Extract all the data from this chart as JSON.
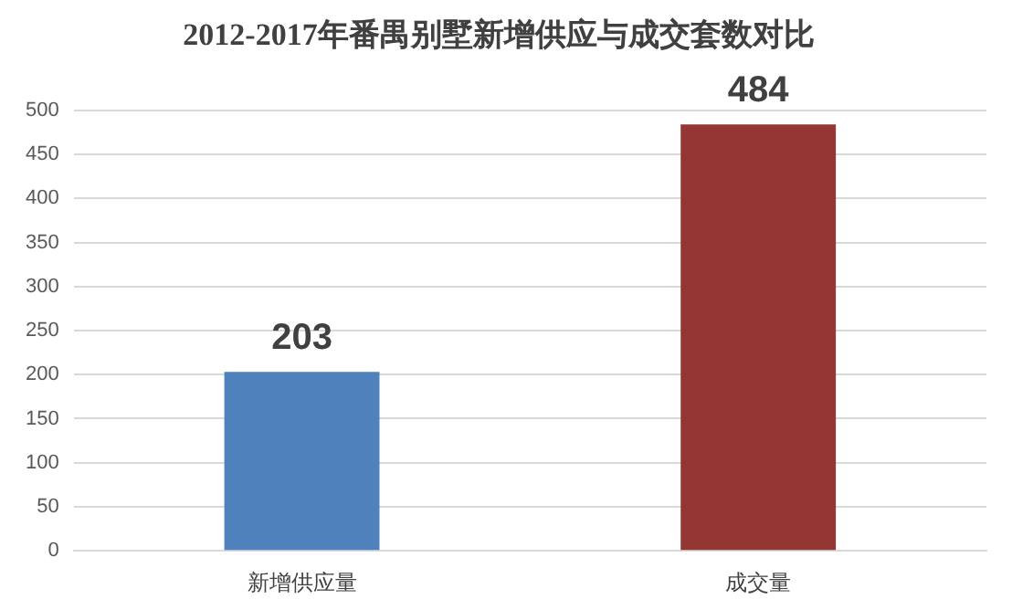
{
  "chart_data": {
    "type": "bar",
    "title": "2012-2017年番禺别墅新增供应与成交套数对比",
    "categories": [
      "新增供应量",
      "成交量"
    ],
    "values": [
      203,
      484
    ],
    "colors": [
      "#4f81bd",
      "#943634"
    ],
    "ylim": [
      0,
      500
    ],
    "yticks": [
      0,
      50,
      100,
      150,
      200,
      250,
      300,
      350,
      400,
      450,
      500
    ],
    "grid": "y",
    "legend": false,
    "data_labels": true
  }
}
